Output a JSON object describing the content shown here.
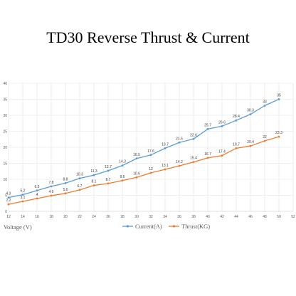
{
  "chart_data": {
    "type": "line",
    "title": "TD30 Reverse Thrust & Current",
    "xlabel": "Voltage (V)",
    "ylabel": "",
    "x_ticks": [
      12,
      14,
      16,
      18,
      20,
      22,
      24,
      26,
      28,
      30,
      32,
      34,
      36,
      38,
      40,
      42,
      44,
      46,
      48,
      50,
      52
    ],
    "y_ticks": [
      0,
      5,
      10,
      15,
      20,
      25,
      30,
      35,
      40
    ],
    "xlim": [
      12,
      52
    ],
    "ylim": [
      0,
      40
    ],
    "grid": true,
    "legend_position": "bottom",
    "x": [
      12,
      14,
      16,
      18,
      20,
      22,
      24,
      26,
      28,
      30,
      32,
      34,
      36,
      38,
      40,
      42,
      44,
      46,
      48,
      50
    ],
    "series": [
      {
        "name": "Current(A)",
        "color": "#5b9bd5",
        "values": [
          4.3,
          5.2,
          6.5,
          7.8,
          8.8,
          10.3,
          11.3,
          12.7,
          14.3,
          16.5,
          17.6,
          19.7,
          21.5,
          22.6,
          25.7,
          26.6,
          28.4,
          30.3,
          33,
          35
        ]
      },
      {
        "name": "Thrust(KG)",
        "color": "#ed7d31",
        "values": [
          2.2,
          3.1,
          4,
          4.9,
          5.6,
          6.7,
          8.1,
          8.7,
          9.6,
          10.6,
          12,
          13.1,
          14.2,
          15.4,
          16.7,
          17.4,
          19.7,
          20.4,
          22,
          23.3
        ]
      }
    ]
  }
}
